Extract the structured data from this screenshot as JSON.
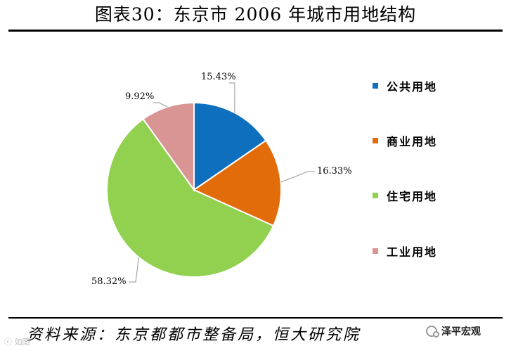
{
  "page": {
    "title": "图表30：东京市 2006 年城市用地结构",
    "source": "资料来源：东京都都市整备局，恒大研究院",
    "watermark_right": "泽平宏观",
    "watermark_left": "ⓒ 如图"
  },
  "chart_data": {
    "type": "pie",
    "title": "",
    "slices": [
      {
        "name": "公共用地",
        "value": 15.43,
        "label": "15.43%",
        "color": "#0E6FBF"
      },
      {
        "name": "商业用地",
        "value": 16.33,
        "label": "16.33%",
        "color": "#E36C0A"
      },
      {
        "name": "住宅用地",
        "value": 58.32,
        "label": "58.32%",
        "color": "#92D050"
      },
      {
        "name": "工业用地",
        "value": 9.92,
        "label": "9.92%",
        "color": "#D99594"
      }
    ],
    "legend_position": "right",
    "start_angle": "top, clockwise"
  }
}
